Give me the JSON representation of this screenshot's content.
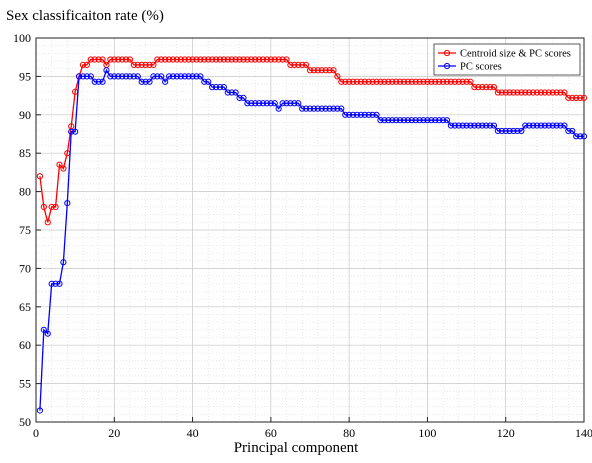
{
  "chart_data": {
    "type": "line",
    "title": "Sex classificaiton rate (%)",
    "xlabel": "Principal component",
    "xlim": [
      0,
      140
    ],
    "ylim": [
      50,
      100
    ],
    "xticks": [
      0,
      20,
      40,
      60,
      80,
      100,
      120,
      140
    ],
    "xtick_labels": [
      "0",
      "20",
      "40",
      "60",
      "80",
      "100",
      "120",
      "140"
    ],
    "yticks": [
      50,
      55,
      60,
      65,
      70,
      75,
      80,
      85,
      90,
      95,
      100
    ],
    "grid": true,
    "legend_position": "top-right",
    "series": [
      {
        "name": "Centroid size & PC scores",
        "color": "#ff0000",
        "marker": "circle",
        "segments": [
          [
            1,
            82
          ],
          [
            2,
            78
          ],
          [
            3,
            76
          ],
          [
            4,
            78
          ],
          [
            5,
            78
          ],
          [
            6,
            83.5
          ],
          [
            7,
            83
          ],
          [
            8,
            85
          ],
          [
            9,
            88.5
          ],
          [
            10,
            93
          ],
          [
            11,
            95
          ],
          [
            12,
            96.5
          ],
          [
            13,
            96.5
          ],
          [
            14,
            97.2
          ],
          [
            17,
            97.2
          ],
          [
            18,
            96.5
          ],
          [
            19,
            97.2
          ],
          [
            24,
            97.2
          ],
          [
            25,
            96.5
          ],
          [
            30,
            96.5
          ],
          [
            31,
            97.2
          ],
          [
            64,
            97.2
          ],
          [
            65,
            96.5
          ],
          [
            69,
            96.5
          ],
          [
            70,
            95.8
          ],
          [
            76,
            95.8
          ],
          [
            77,
            95
          ],
          [
            78,
            94.3
          ],
          [
            111,
            94.3
          ],
          [
            112,
            93.6
          ],
          [
            117,
            93.6
          ],
          [
            118,
            92.9
          ],
          [
            135,
            92.9
          ],
          [
            136,
            92.2
          ],
          [
            140,
            92.2
          ]
        ]
      },
      {
        "name": "PC scores",
        "color": "#0000ff",
        "marker": "circle",
        "segments": [
          [
            1,
            51.5
          ],
          [
            2,
            62
          ],
          [
            3,
            61.5
          ],
          [
            4,
            68
          ],
          [
            5,
            68
          ],
          [
            6,
            68
          ],
          [
            7,
            70.8
          ],
          [
            8,
            78.5
          ],
          [
            9,
            87.8
          ],
          [
            10,
            87.8
          ],
          [
            11,
            95
          ],
          [
            14,
            95
          ],
          [
            15,
            94.3
          ],
          [
            17,
            94.3
          ],
          [
            18,
            95.8
          ],
          [
            19,
            95
          ],
          [
            26,
            95
          ],
          [
            27,
            94.3
          ],
          [
            29,
            94.3
          ],
          [
            30,
            95
          ],
          [
            32,
            95
          ],
          [
            33,
            94.3
          ],
          [
            34,
            95
          ],
          [
            42,
            95
          ],
          [
            43,
            94.3
          ],
          [
            44,
            94.3
          ],
          [
            45,
            93.6
          ],
          [
            48,
            93.6
          ],
          [
            49,
            92.9
          ],
          [
            51,
            92.9
          ],
          [
            52,
            92.2
          ],
          [
            53,
            92.2
          ],
          [
            54,
            91.5
          ],
          [
            61,
            91.5
          ],
          [
            62,
            90.8
          ],
          [
            63,
            91.5
          ],
          [
            67,
            91.5
          ],
          [
            68,
            90.8
          ],
          [
            78,
            90.8
          ],
          [
            79,
            90
          ],
          [
            87,
            90
          ],
          [
            88,
            89.3
          ],
          [
            105,
            89.3
          ],
          [
            106,
            88.6
          ],
          [
            117,
            88.6
          ],
          [
            118,
            87.9
          ],
          [
            124,
            87.9
          ],
          [
            125,
            88.6
          ],
          [
            135,
            88.6
          ],
          [
            136,
            87.9
          ],
          [
            137,
            87.9
          ],
          [
            138,
            87.2
          ],
          [
            140,
            87.2
          ]
        ]
      }
    ]
  }
}
